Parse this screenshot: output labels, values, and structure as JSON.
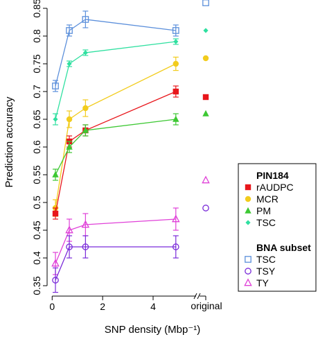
{
  "chart_data": {
    "type": "line",
    "xlabel": "SNP density (Mbp⁻¹)",
    "ylabel": "Prediction accuracy",
    "xlim": [
      -0.2,
      5.4
    ],
    "ylim": [
      0.345,
      0.855
    ],
    "xticks": [
      0,
      2,
      4
    ],
    "yticks": [
      0.35,
      0.4,
      0.45,
      0.5,
      0.55,
      0.6,
      0.65,
      0.7,
      0.75,
      0.8,
      0.85
    ],
    "original_tick_label": "original",
    "grid": false,
    "legend_position": "right",
    "legend_groups": [
      {
        "title": "PIN184",
        "items": [
          "rAUDPC",
          "MCR",
          "PM",
          "TSC"
        ]
      },
      {
        "title": "BNA subset",
        "items": [
          "TSC",
          "TSY",
          "TY"
        ]
      }
    ],
    "series": [
      {
        "name": "TSC",
        "group": "BNA subset",
        "color": "#5B8FDB",
        "marker": "square-open",
        "x": [
          0.13,
          0.68,
          1.32,
          4.9
        ],
        "y": [
          0.71,
          0.81,
          0.83,
          0.81
        ],
        "err": [
          0.01,
          0.01,
          0.015,
          0.01
        ],
        "original": 0.86
      },
      {
        "name": "TSC",
        "group": "PIN184",
        "color": "#2FE0A0",
        "marker": "diamond",
        "x": [
          0.13,
          0.68,
          1.32,
          4.9
        ],
        "y": [
          0.65,
          0.75,
          0.77,
          0.79
        ],
        "err": [
          0.01,
          0.005,
          0.005,
          0.005
        ],
        "original": 0.81
      },
      {
        "name": "MCR",
        "group": "PIN184",
        "color": "#F2CC1D",
        "marker": "circle",
        "x": [
          0.13,
          0.68,
          1.32,
          4.9
        ],
        "y": [
          0.49,
          0.65,
          0.67,
          0.75
        ],
        "err": [
          0.015,
          0.015,
          0.015,
          0.012
        ],
        "original": 0.76
      },
      {
        "name": "rAUDPC",
        "group": "PIN184",
        "color": "#E8161B",
        "marker": "square",
        "x": [
          0.13,
          0.68,
          1.32,
          4.9
        ],
        "y": [
          0.48,
          0.61,
          0.63,
          0.7
        ],
        "err": [
          0.01,
          0.01,
          0.01,
          0.01
        ],
        "original": 0.69
      },
      {
        "name": "PM",
        "group": "PIN184",
        "color": "#3DC833",
        "marker": "triangle",
        "x": [
          0.13,
          0.68,
          1.32,
          4.9
        ],
        "y": [
          0.55,
          0.6,
          0.63,
          0.65
        ],
        "err": [
          0.01,
          0.01,
          0.01,
          0.01
        ],
        "original": 0.66
      },
      {
        "name": "TY",
        "group": "BNA subset",
        "color": "#E040D8",
        "marker": "triangle-open",
        "x": [
          0.13,
          0.68,
          1.32,
          4.9
        ],
        "y": [
          0.39,
          0.45,
          0.46,
          0.47
        ],
        "err": [
          0.02,
          0.02,
          0.02,
          0.02
        ],
        "original": 0.54
      },
      {
        "name": "TSY",
        "group": "BNA subset",
        "color": "#7A2BD9",
        "marker": "circle-open",
        "x": [
          0.13,
          0.68,
          1.32,
          4.9
        ],
        "y": [
          0.36,
          0.42,
          0.42,
          0.42
        ],
        "err": [
          0.022,
          0.02,
          0.02,
          0.02
        ],
        "original": 0.49
      }
    ]
  }
}
